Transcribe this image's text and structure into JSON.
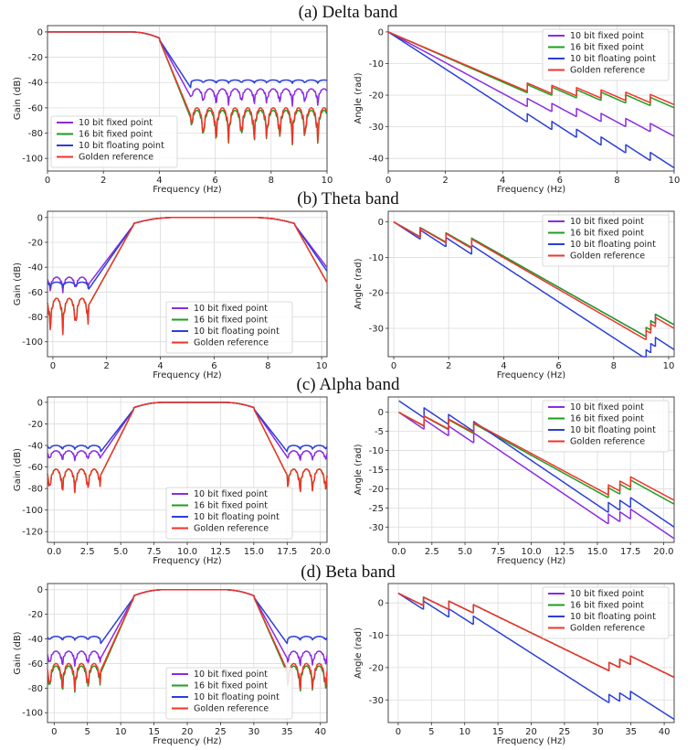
{
  "colors": {
    "fixed10": "#8a2be2",
    "fixed16": "#1e9e1e",
    "float10": "#2c3fd6",
    "golden": "#f0342a"
  },
  "chart_data": [
    {
      "id": "delta",
      "title": "(a) Delta band",
      "band_hz": [
        0,
        4
      ],
      "mag": {
        "type": "line",
        "xlabel": "Frequency (Hz)",
        "ylabel": "Gain (dB)",
        "xlim": [
          0,
          10
        ],
        "ylim": [
          -110,
          5
        ],
        "xticks": [
          0,
          2,
          4,
          6,
          8,
          10
        ],
        "yticks": [
          0,
          -20,
          -40,
          -60,
          -80,
          -100
        ],
        "legend_position": "lower-left",
        "series": [
          {
            "name": "10 bit fixed point",
            "color_key": "fixed10",
            "floor": -45,
            "ripple": 20
          },
          {
            "name": "16 bit fixed point",
            "color_key": "fixed16",
            "floor": -62,
            "ripple": 40
          },
          {
            "name": "10 bit floating point",
            "color_key": "float10",
            "floor": -38,
            "ripple": 4
          },
          {
            "name": "Golden reference",
            "color_key": "golden",
            "floor": -60,
            "ripple": 42
          }
        ]
      },
      "phase": {
        "type": "line",
        "xlabel": "Frequency (Hz)",
        "ylabel": "Angle (rad)",
        "xlim": [
          0,
          10
        ],
        "ylim": [
          -44,
          2
        ],
        "xticks": [
          0,
          2,
          4,
          6,
          8,
          10
        ],
        "yticks": [
          0,
          -10,
          -20,
          -30,
          -40
        ],
        "legend_position": "top-right",
        "series": [
          {
            "name": "10 bit fixed point",
            "color_key": "fixed10",
            "start": 0,
            "end": -33
          },
          {
            "name": "16 bit fixed point",
            "color_key": "fixed16",
            "start": 0,
            "end": -24
          },
          {
            "name": "10 bit floating point",
            "color_key": "float10",
            "start": 0,
            "end": -43
          },
          {
            "name": "Golden reference",
            "color_key": "golden",
            "start": 0,
            "end": -23
          }
        ]
      }
    },
    {
      "id": "theta",
      "title": "(b) Theta band",
      "band_hz": [
        3,
        9
      ],
      "mag": {
        "type": "line",
        "xlabel": "Frequency (Hz)",
        "ylabel": "Gain (dB)",
        "xlim": [
          -0.2,
          10.2
        ],
        "ylim": [
          -112,
          5
        ],
        "xticks": [
          0,
          2,
          4,
          6,
          8,
          10
        ],
        "yticks": [
          0,
          -20,
          -40,
          -60,
          -80,
          -100
        ],
        "legend_position": "lower-right",
        "series": [
          {
            "name": "10 bit fixed point",
            "color_key": "fixed10",
            "floor": -48,
            "ripple": 18
          },
          {
            "name": "16 bit fixed point",
            "color_key": "fixed16",
            "floor": -65,
            "ripple": 40
          },
          {
            "name": "10 bit floating point",
            "color_key": "float10",
            "floor": -52,
            "ripple": 6
          },
          {
            "name": "Golden reference",
            "color_key": "golden",
            "floor": -65,
            "ripple": 42
          }
        ]
      },
      "phase": {
        "type": "line",
        "xlabel": "Frequency (Hz)",
        "ylabel": "Angle (rad)",
        "xlim": [
          -0.2,
          10.2
        ],
        "ylim": [
          -38,
          3
        ],
        "xticks": [
          0,
          2,
          4,
          6,
          8,
          10
        ],
        "yticks": [
          0,
          -10,
          -20,
          -30
        ],
        "legend_position": "top-right",
        "series": [
          {
            "name": "10 bit fixed point",
            "color_key": "fixed10",
            "start": 0,
            "end": -29
          },
          {
            "name": "16 bit fixed point",
            "color_key": "fixed16",
            "start": 0,
            "end": -29
          },
          {
            "name": "10 bit floating point",
            "color_key": "float10",
            "start": 0,
            "end": -36
          },
          {
            "name": "Golden reference",
            "color_key": "golden",
            "start": 0,
            "end": -30
          }
        ]
      }
    },
    {
      "id": "alpha",
      "title": "(c) Alpha band",
      "band_hz": [
        6,
        15
      ],
      "mag": {
        "type": "line",
        "xlabel": "Frequency (Hz)",
        "ylabel": "Gain (dB)",
        "xlim": [
          -0.5,
          20.5
        ],
        "ylim": [
          -130,
          5
        ],
        "xticks": [
          0.0,
          2.5,
          5.0,
          7.5,
          10.0,
          12.5,
          15.0,
          17.5,
          20.0
        ],
        "yticks": [
          0,
          -20,
          -40,
          -60,
          -80,
          -100,
          -120
        ],
        "legend_position": "lower-right",
        "series": [
          {
            "name": "10 bit fixed point",
            "color_key": "fixed10",
            "floor": -45,
            "ripple": 15
          },
          {
            "name": "16 bit fixed point",
            "color_key": "fixed16",
            "floor": -62,
            "ripple": 35
          },
          {
            "name": "10 bit floating point",
            "color_key": "float10",
            "floor": -40,
            "ripple": 6
          },
          {
            "name": "Golden reference",
            "color_key": "golden",
            "floor": -62,
            "ripple": 36
          }
        ]
      },
      "phase": {
        "type": "line",
        "xlabel": "Frequency (Hz)",
        "ylabel": "Angle (rad)",
        "xlim": [
          -0.8,
          20.8
        ],
        "ylim": [
          -34,
          4
        ],
        "xticks": [
          0.0,
          2.5,
          5.0,
          7.5,
          10.0,
          12.5,
          15.0,
          17.5,
          20.0
        ],
        "yticks": [
          0,
          -5,
          -10,
          -15,
          -20,
          -25,
          -30
        ],
        "legend_position": "top-right",
        "series": [
          {
            "name": "10 bit fixed point",
            "color_key": "fixed10",
            "start": 0,
            "end": -33
          },
          {
            "name": "16 bit fixed point",
            "color_key": "fixed16",
            "start": 0,
            "end": -24
          },
          {
            "name": "10 bit floating point",
            "color_key": "float10",
            "start": 3,
            "end": -30
          },
          {
            "name": "Golden reference",
            "color_key": "golden",
            "start": 0,
            "end": -23
          }
        ]
      }
    },
    {
      "id": "beta",
      "title": "(d) Beta band",
      "band_hz": [
        12,
        30
      ],
      "mag": {
        "type": "line",
        "xlabel": "Frequency (Hz)",
        "ylabel": "Gain (dB)",
        "xlim": [
          -1,
          41
        ],
        "ylim": [
          -108,
          5
        ],
        "xticks": [
          0,
          5,
          10,
          15,
          20,
          25,
          30,
          35,
          40
        ],
        "yticks": [
          0,
          -20,
          -40,
          -60,
          -80,
          -100
        ],
        "legend_position": "lower-right",
        "series": [
          {
            "name": "10 bit fixed point",
            "color_key": "fixed10",
            "floor": -50,
            "ripple": 20
          },
          {
            "name": "16 bit fixed point",
            "color_key": "fixed16",
            "floor": -62,
            "ripple": 35
          },
          {
            "name": "10 bit floating point",
            "color_key": "float10",
            "floor": -38,
            "ripple": 5
          },
          {
            "name": "Golden reference",
            "color_key": "golden",
            "floor": -60,
            "ripple": 36
          }
        ]
      },
      "phase": {
        "type": "line",
        "xlabel": "Frequency (Hz)",
        "ylabel": "Angle (rad)",
        "xlim": [
          -1.5,
          41.5
        ],
        "ylim": [
          -37,
          6
        ],
        "xticks": [
          0,
          5,
          10,
          15,
          20,
          25,
          30,
          35,
          40
        ],
        "yticks": [
          0,
          -10,
          -20,
          -30
        ],
        "legend_position": "top-right",
        "series": [
          {
            "name": "10 bit fixed point",
            "color_key": "fixed10",
            "start": 3,
            "end": -23
          },
          {
            "name": "16 bit fixed point",
            "color_key": "fixed16",
            "start": 3,
            "end": -23
          },
          {
            "name": "10 bit floating point",
            "color_key": "float10",
            "start": 3,
            "end": -36
          },
          {
            "name": "Golden reference",
            "color_key": "golden",
            "start": 3,
            "end": -23
          }
        ]
      }
    }
  ]
}
